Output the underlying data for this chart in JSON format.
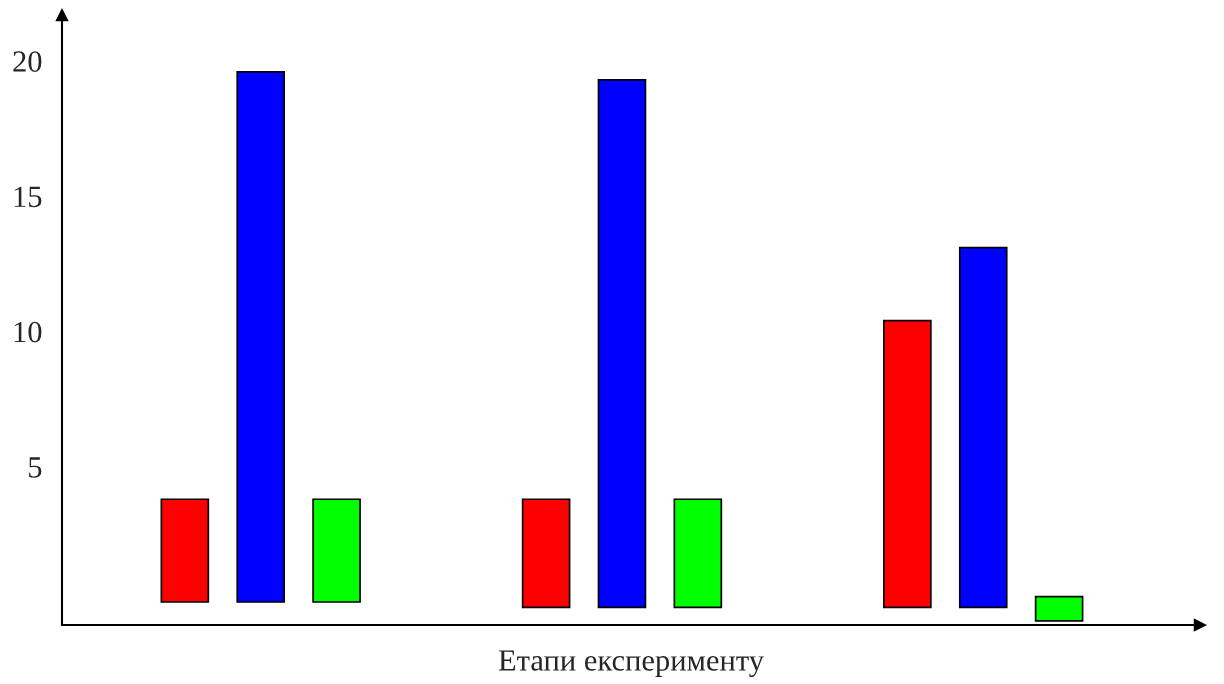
{
  "chart_data": {
    "type": "bar",
    "xlabel": "Етапи експерименту",
    "categories": [
      null,
      null,
      null
    ],
    "series": [
      {
        "color": "#ff0000",
        "values": [
          3.8,
          4.0,
          10.6
        ],
        "base": [
          0,
          -0.2,
          -0.2
        ]
      },
      {
        "color": "#0000ff",
        "values": [
          19.6,
          19.5,
          13.3
        ],
        "base": [
          0,
          -0.2,
          -0.2
        ]
      },
      {
        "color": "#00ff00",
        "values": [
          3.8,
          4.0,
          0.9
        ],
        "base": [
          0,
          -0.2,
          -0.7
        ]
      }
    ],
    "ylim": [
      -0.85,
      21.7
    ],
    "yticks": [
      5,
      10,
      15,
      20
    ],
    "grid": false,
    "legend": false
  }
}
